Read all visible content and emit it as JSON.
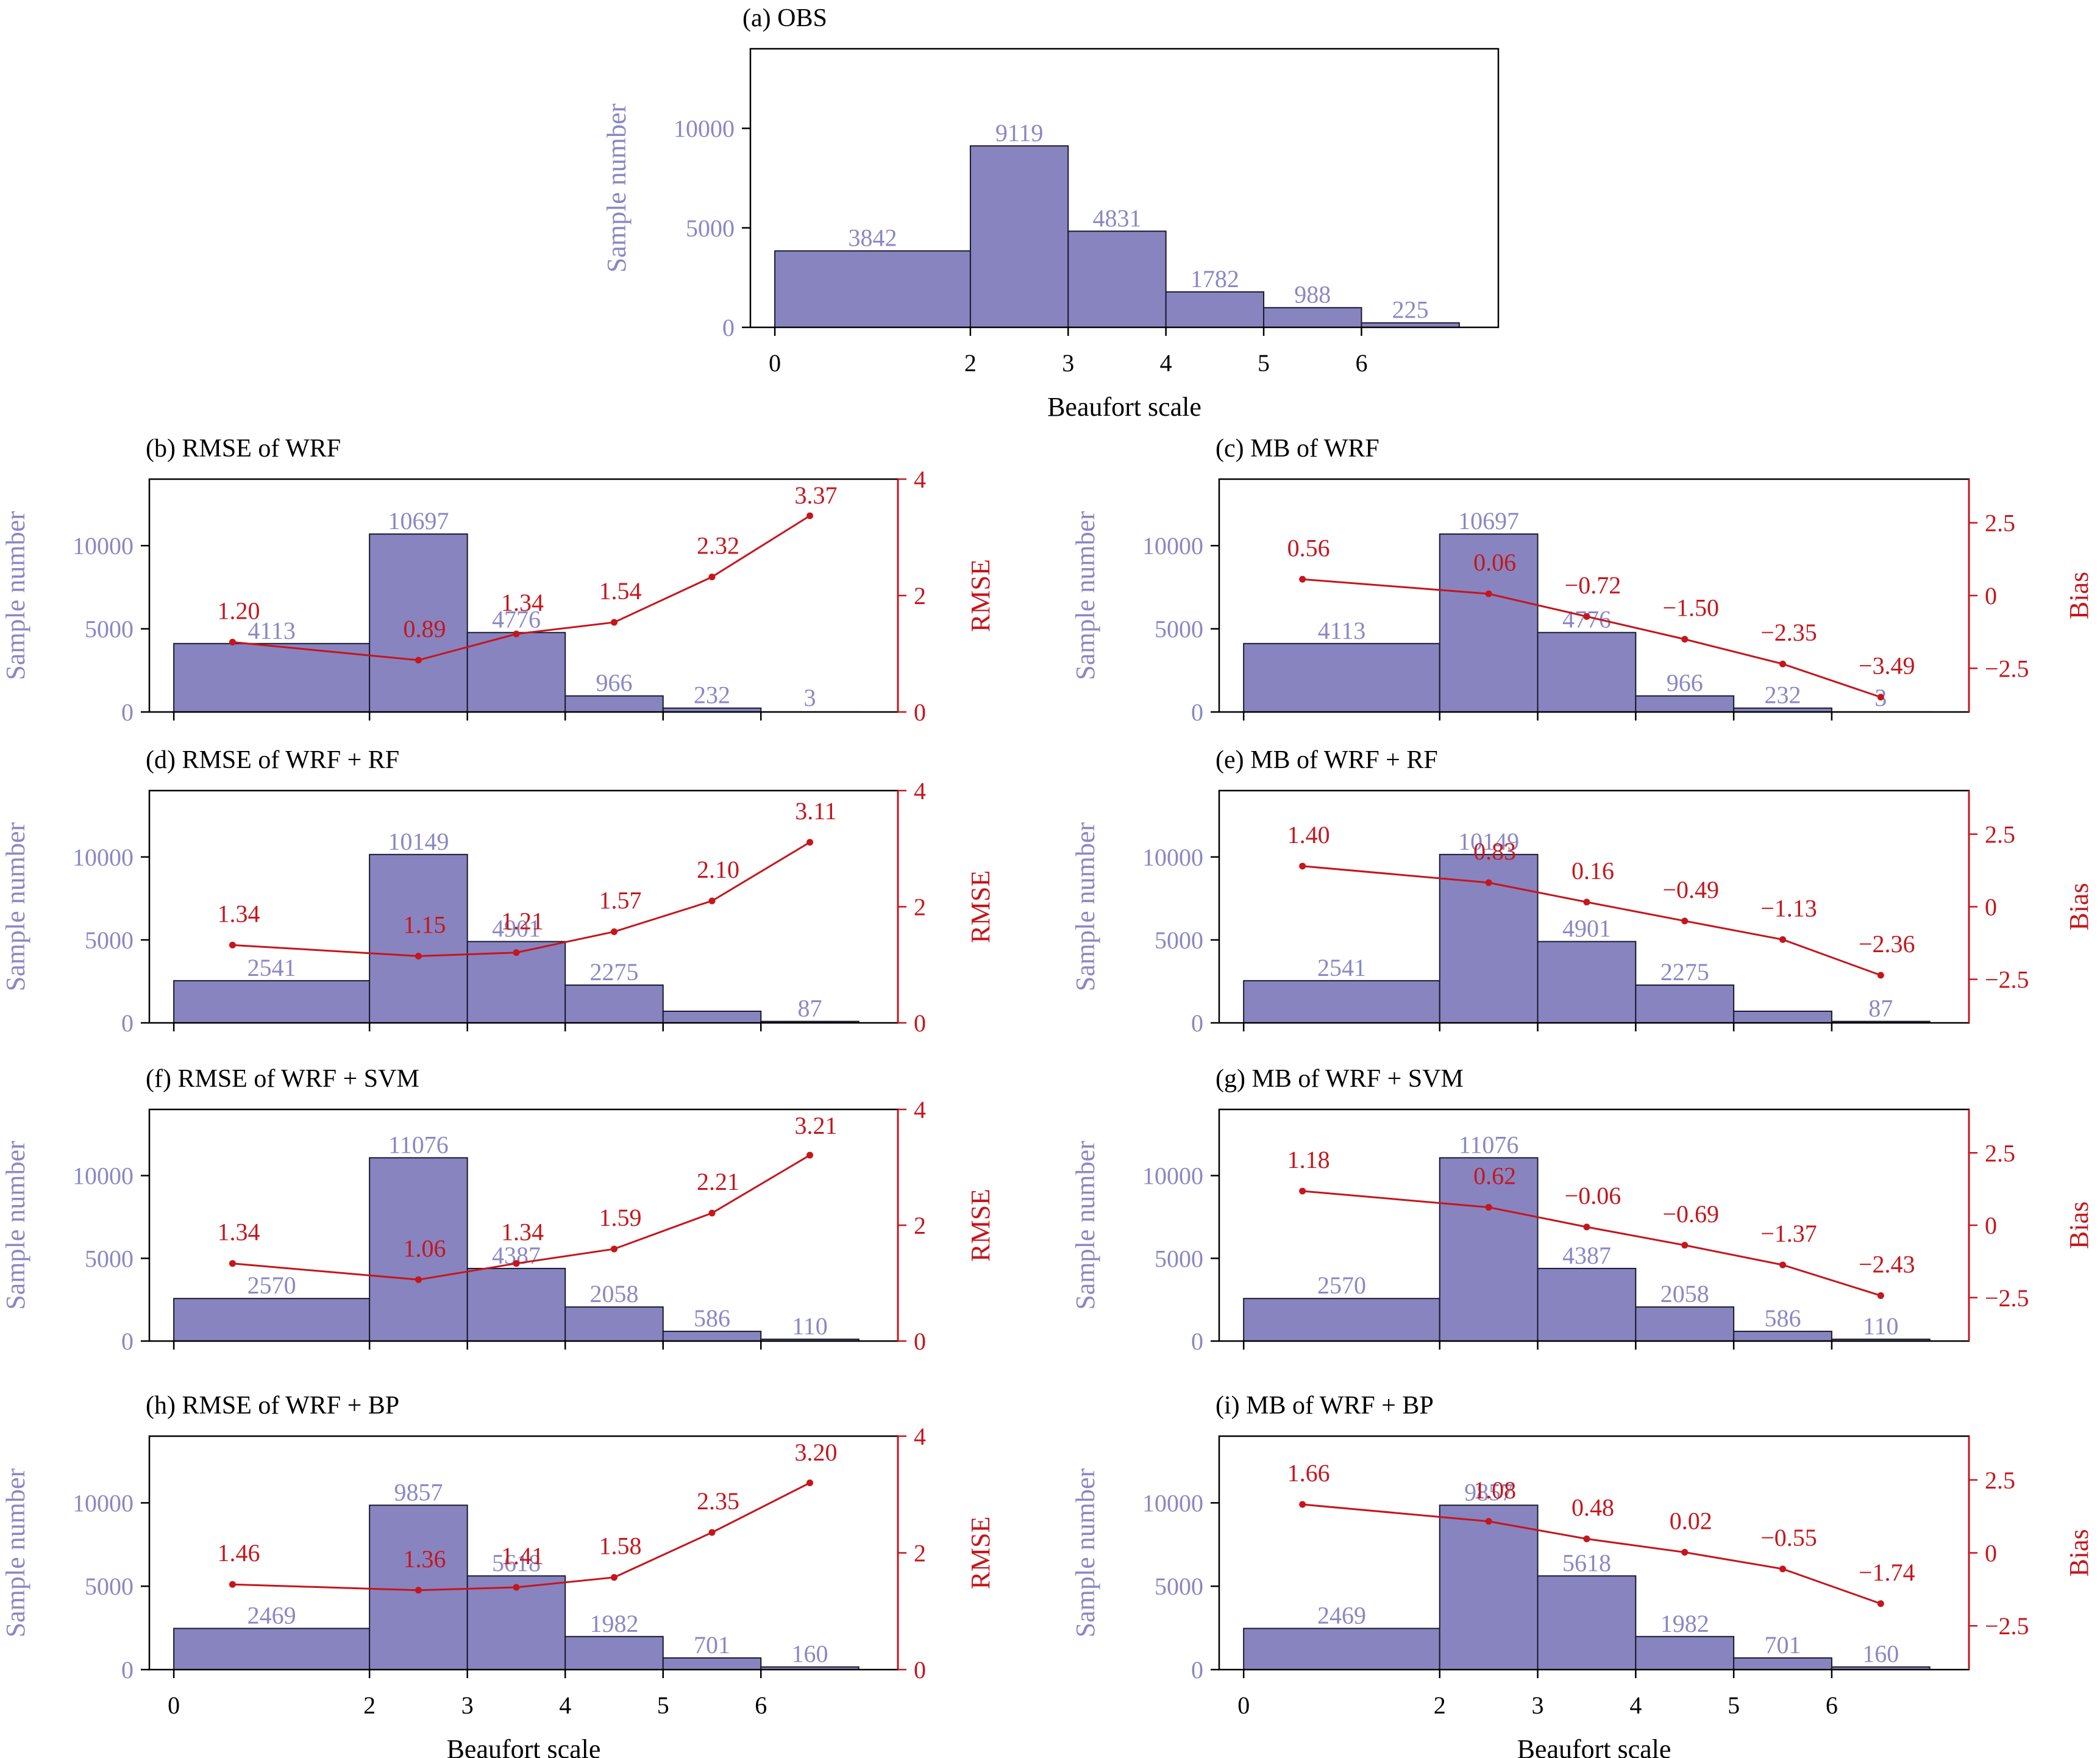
{
  "colors": {
    "bar_fill": "#8884c0",
    "bar_text": "#8a87c4",
    "line": "#c4161c",
    "axis": "#000000"
  },
  "bin_edges": [
    0,
    2,
    3,
    4,
    5,
    6,
    7
  ],
  "line_x": [
    0.6,
    2.5,
    3.5,
    4.5,
    5.5,
    6.5
  ],
  "chart_data": [
    {
      "id": "a",
      "type": "bar",
      "title": "(a) OBS",
      "xlabel": "Beaufort scale",
      "ylabel": "Sample number",
      "x_ticks": [
        "0",
        "2",
        "3",
        "4",
        "5",
        "6"
      ],
      "y_ticks": [
        "0",
        "5000",
        "10000"
      ],
      "ylim": [
        0,
        14000
      ],
      "values": [
        3842,
        9119,
        4831,
        1782,
        988,
        225
      ],
      "bar_labels": [
        "3842",
        "9119",
        "4831",
        "1782",
        "988",
        "225"
      ]
    },
    {
      "id": "b",
      "type": "bar+line",
      "title": "(b) RMSE of WRF",
      "xlabel": "",
      "ylabel": "Sample number",
      "y2label": "RMSE",
      "y_ticks": [
        "0",
        "5000",
        "10000"
      ],
      "ylim": [
        0,
        14000
      ],
      "y2_ticks": [
        "0",
        "2",
        "4"
      ],
      "y2lim": [
        0,
        4
      ],
      "values": [
        4113,
        10697,
        4776,
        966,
        232,
        3
      ],
      "bar_labels": [
        "4113",
        "10697",
        "4776",
        "966",
        "232",
        "3"
      ],
      "line_values": [
        1.2,
        0.89,
        1.34,
        1.54,
        2.32,
        3.37
      ],
      "line_labels": [
        "1.20",
        "0.89",
        "1.34",
        "1.54",
        "2.32",
        "3.37"
      ]
    },
    {
      "id": "c",
      "type": "bar+line",
      "title": "(c) MB of WRF",
      "xlabel": "",
      "ylabel": "Sample number",
      "y2label": "Bias",
      "y_ticks": [
        "0",
        "5000",
        "10000"
      ],
      "ylim": [
        0,
        14000
      ],
      "y2_ticks": [
        "−2.5",
        "0",
        "2.5"
      ],
      "y2lim": [
        -4,
        4
      ],
      "values": [
        4113,
        10697,
        4776,
        966,
        232,
        3
      ],
      "bar_labels": [
        "4113",
        "10697",
        "4776",
        "966",
        "232",
        "3"
      ],
      "line_values": [
        0.56,
        0.06,
        -0.72,
        -1.5,
        -2.35,
        -3.49
      ],
      "line_labels": [
        "0.56",
        "0.06",
        "−0.72",
        "−1.50",
        "−2.35",
        "−3.49"
      ]
    },
    {
      "id": "d",
      "type": "bar+line",
      "title": "(d) RMSE of WRF + RF",
      "xlabel": "",
      "ylabel": "Sample number",
      "y2label": "RMSE",
      "y_ticks": [
        "0",
        "5000",
        "10000"
      ],
      "ylim": [
        0,
        14000
      ],
      "y2_ticks": [
        "0",
        "2",
        "4"
      ],
      "y2lim": [
        0,
        4
      ],
      "values": [
        2541,
        10149,
        4901,
        2275,
        700,
        87
      ],
      "bar_labels": [
        "2541",
        "10149",
        "4901",
        "2275",
        "",
        "87"
      ],
      "line_values": [
        1.34,
        1.15,
        1.21,
        1.57,
        2.1,
        3.11
      ],
      "line_labels": [
        "1.34",
        "1.15",
        "1.21",
        "1.57",
        "2.10",
        "3.11"
      ]
    },
    {
      "id": "e",
      "type": "bar+line",
      "title": "(e) MB of WRF + RF",
      "xlabel": "",
      "ylabel": "Sample number",
      "y2label": "Bias",
      "y_ticks": [
        "0",
        "5000",
        "10000"
      ],
      "ylim": [
        0,
        14000
      ],
      "y2_ticks": [
        "−2.5",
        "0",
        "2.5"
      ],
      "y2lim": [
        -4,
        4
      ],
      "values": [
        2541,
        10149,
        4901,
        2275,
        700,
        87
      ],
      "bar_labels": [
        "2541",
        "10149",
        "4901",
        "2275",
        "",
        "87"
      ],
      "line_values": [
        1.4,
        0.83,
        0.16,
        -0.49,
        -1.13,
        -2.36
      ],
      "line_labels": [
        "1.40",
        "0.83",
        "0.16",
        "−0.49",
        "−1.13",
        "−2.36"
      ]
    },
    {
      "id": "f",
      "type": "bar+line",
      "title": "(f) RMSE of WRF + SVM",
      "xlabel": "",
      "ylabel": "Sample number",
      "y2label": "RMSE",
      "y_ticks": [
        "0",
        "5000",
        "10000"
      ],
      "ylim": [
        0,
        14000
      ],
      "y2_ticks": [
        "0",
        "2",
        "4"
      ],
      "y2lim": [
        0,
        4
      ],
      "values": [
        2570,
        11076,
        4387,
        2058,
        586,
        110
      ],
      "bar_labels": [
        "2570",
        "11076",
        "4387",
        "2058",
        "586",
        "110"
      ],
      "line_values": [
        1.34,
        1.06,
        1.34,
        1.59,
        2.21,
        3.21
      ],
      "line_labels": [
        "1.34",
        "1.06",
        "1.34",
        "1.59",
        "2.21",
        "3.21"
      ]
    },
    {
      "id": "g",
      "type": "bar+line",
      "title": "(g) MB of WRF + SVM",
      "xlabel": "",
      "ylabel": "Sample number",
      "y2label": "Bias",
      "y_ticks": [
        "0",
        "5000",
        "10000"
      ],
      "ylim": [
        0,
        14000
      ],
      "y2_ticks": [
        "−2.5",
        "0",
        "2.5"
      ],
      "y2lim": [
        -4,
        4
      ],
      "values": [
        2570,
        11076,
        4387,
        2058,
        586,
        110
      ],
      "bar_labels": [
        "2570",
        "11076",
        "4387",
        "2058",
        "586",
        "110"
      ],
      "line_values": [
        1.18,
        0.62,
        -0.06,
        -0.69,
        -1.37,
        -2.43
      ],
      "line_labels": [
        "1.18",
        "0.62",
        "−0.06",
        "−0.69",
        "−1.37",
        "−2.43"
      ]
    },
    {
      "id": "h",
      "type": "bar+line",
      "title": "(h) RMSE of WRF + BP",
      "xlabel": "Beaufort scale",
      "ylabel": "Sample number",
      "y2label": "RMSE",
      "x_ticks": [
        "0",
        "2",
        "3",
        "4",
        "5",
        "6"
      ],
      "y_ticks": [
        "0",
        "5000",
        "10000"
      ],
      "ylim": [
        0,
        14000
      ],
      "y2_ticks": [
        "0",
        "2",
        "4"
      ],
      "y2lim": [
        0,
        4
      ],
      "values": [
        2469,
        9857,
        5618,
        1982,
        701,
        160
      ],
      "bar_labels": [
        "2469",
        "9857",
        "5618",
        "1982",
        "701",
        "160"
      ],
      "line_values": [
        1.46,
        1.36,
        1.41,
        1.58,
        2.35,
        3.2
      ],
      "line_labels": [
        "1.46",
        "1.36",
        "1.41",
        "1.58",
        "2.35",
        "3.20"
      ]
    },
    {
      "id": "i",
      "type": "bar+line",
      "title": "(i) MB of WRF + BP",
      "xlabel": "Beaufort scale",
      "ylabel": "Sample number",
      "y2label": "Bias",
      "x_ticks": [
        "0",
        "2",
        "3",
        "4",
        "5",
        "6"
      ],
      "y_ticks": [
        "0",
        "5000",
        "10000"
      ],
      "ylim": [
        0,
        14000
      ],
      "y2_ticks": [
        "−2.5",
        "0",
        "2.5"
      ],
      "y2lim": [
        -4,
        4
      ],
      "values": [
        2469,
        9857,
        5618,
        1982,
        701,
        160
      ],
      "bar_labels": [
        "2469",
        "9857",
        "5618",
        "1982",
        "701",
        "160"
      ],
      "line_values": [
        1.66,
        1.08,
        0.48,
        0.02,
        -0.55,
        -1.74
      ],
      "line_labels": [
        "1.66",
        "1.08",
        "0.48",
        "0.02",
        "−0.55",
        "−1.74"
      ]
    }
  ]
}
